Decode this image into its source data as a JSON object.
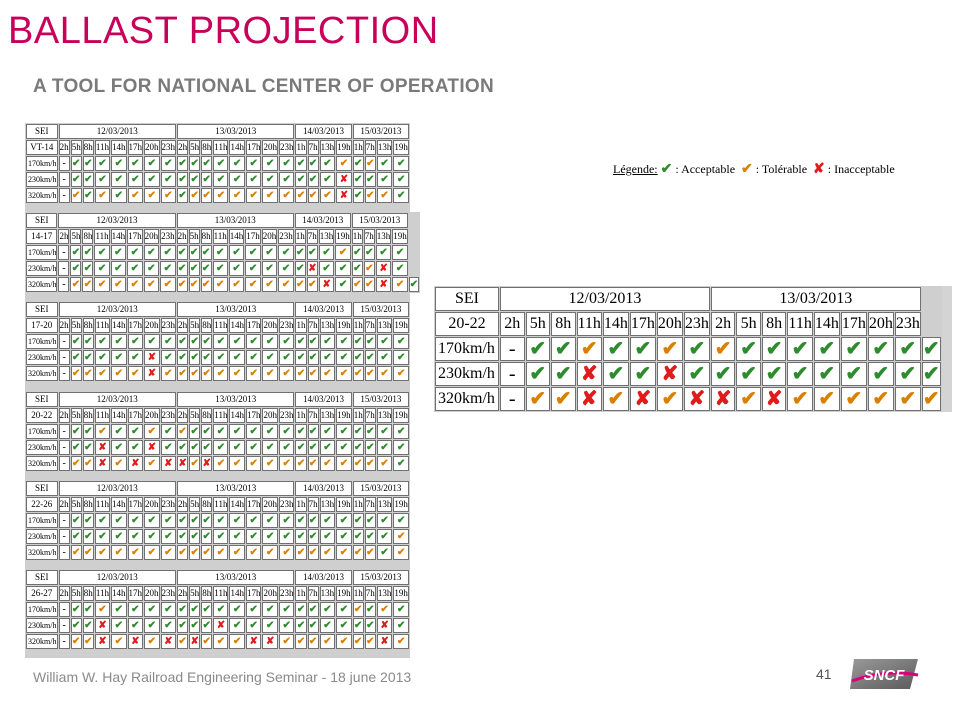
{
  "header": {
    "title": "BALLAST PROJECTION",
    "subtitle": "A TOOL FOR NATIONAL CENTER OF OPERATION"
  },
  "legend": {
    "label": "Légende:",
    "acceptable": ": Acceptable",
    "tolerable": ": Tolérable",
    "inacceptable": ": Inacceptable"
  },
  "colors": {
    "title": "#c8005a",
    "acceptable": "#2e8b2e",
    "tolerable": "#d98000",
    "inacceptable": "#e01b1b"
  },
  "symbols": {
    "a": "✔",
    "t": "✔",
    "i": "✘",
    "-": "-"
  },
  "hours": [
    "2h",
    "5h",
    "8h",
    "11h",
    "14h",
    "17h",
    "20h",
    "23h",
    "2h",
    "5h",
    "8h",
    "11h",
    "14h",
    "17h",
    "20h",
    "23h",
    "1h",
    "7h",
    "13h",
    "19h",
    "1h",
    "7h",
    "13h",
    "19h"
  ],
  "dates": [
    {
      "label": "12/03/2013",
      "span": 8
    },
    {
      "label": "13/03/2013",
      "span": 8
    },
    {
      "label": "14/03/2013",
      "span": 4
    },
    {
      "label": "15/03/2013",
      "span": 4
    }
  ],
  "sei_label": "SEI",
  "tables": [
    {
      "section": "VT-14",
      "rows": [
        {
          "speed": "170km/h",
          "marks": "-aaaaaaaaaaaaaaaaaatataa"
        },
        {
          "speed": "230km/h",
          "marks": "-aaaaaaaaaaaaaaaaaaiaaaa"
        },
        {
          "speed": "320km/h",
          "marks": "-tatatttattttttttttiatta"
        }
      ]
    },
    {
      "section": "14-17",
      "rows": [
        {
          "speed": "170km/h",
          "marks": "-aaaaaaaaaaaaaaaaaataaaa"
        },
        {
          "speed": "230km/h",
          "marks": "-aaaaaaaaaaaaaaaaiaaatia"
        },
        {
          "speed": "320km/h",
          "marks": "-tttttttttttttttttiattita"
        }
      ]
    },
    {
      "section": "17-20",
      "rows": [
        {
          "speed": "170km/h",
          "marks": "-aaaaaaaaaaaaaaaaaaaaaaa"
        },
        {
          "speed": "230km/h",
          "marks": "-aaaaaiaaaaaaaaaaaaaaaaa"
        },
        {
          "speed": "320km/h",
          "marks": "-tttttittttttttttttttttt"
        }
      ]
    },
    {
      "section": "20-22",
      "rows": [
        {
          "speed": "170km/h",
          "marks": "-aataatataaaaaaaaaaaaaaa"
        },
        {
          "speed": "230km/h",
          "marks": "-aaiaaiaaaaaaaaaaaaaaaaa"
        },
        {
          "speed": "320km/h",
          "marks": "-ttititiititttttttttttta"
        }
      ]
    },
    {
      "section": "22-26",
      "rows": [
        {
          "speed": "170km/h",
          "marks": "-aaaaaaaaaaaaaaaaaaaaaaa"
        },
        {
          "speed": "230km/h",
          "marks": "-aaaaaaaaaaaaaaaaaaaaaat"
        },
        {
          "speed": "320km/h",
          "marks": "-tttttttttttttttttttttat"
        }
      ]
    },
    {
      "section": "26-27",
      "rows": [
        {
          "speed": "170km/h",
          "marks": "-aataaaaaaaaaaaaaaaatata"
        },
        {
          "speed": "230km/h",
          "marks": "-aaiaaaaaaaiaaaaaaaaaaia"
        },
        {
          "speed": "320km/h",
          "marks": "-ttititititttiitttttttit"
        }
      ]
    }
  ],
  "detail_table": {
    "section": "20-22",
    "hours": [
      "2h",
      "5h",
      "8h",
      "11h",
      "14h",
      "17h",
      "20h",
      "23h",
      "2h",
      "5h",
      "8h",
      "11h",
      "14h",
      "17h",
      "20h",
      "23h"
    ],
    "dates": [
      {
        "label": "12/03/2013",
        "span": 8
      },
      {
        "label": "13/03/2013",
        "span": 8
      }
    ],
    "rows": [
      {
        "speed": "170km/h",
        "marks": "-aataatataaaaaaaa"
      },
      {
        "speed": "230km/h",
        "marks": "-aaiaaiaaaaaaaaaa"
      },
      {
        "speed": "320km/h",
        "marks": "-ttititiititttttt"
      }
    ]
  },
  "footer": {
    "text": "William W. Hay Railroad Engineering Seminar - 18 june 2013",
    "page": "41",
    "logo_text": "SNCF"
  }
}
